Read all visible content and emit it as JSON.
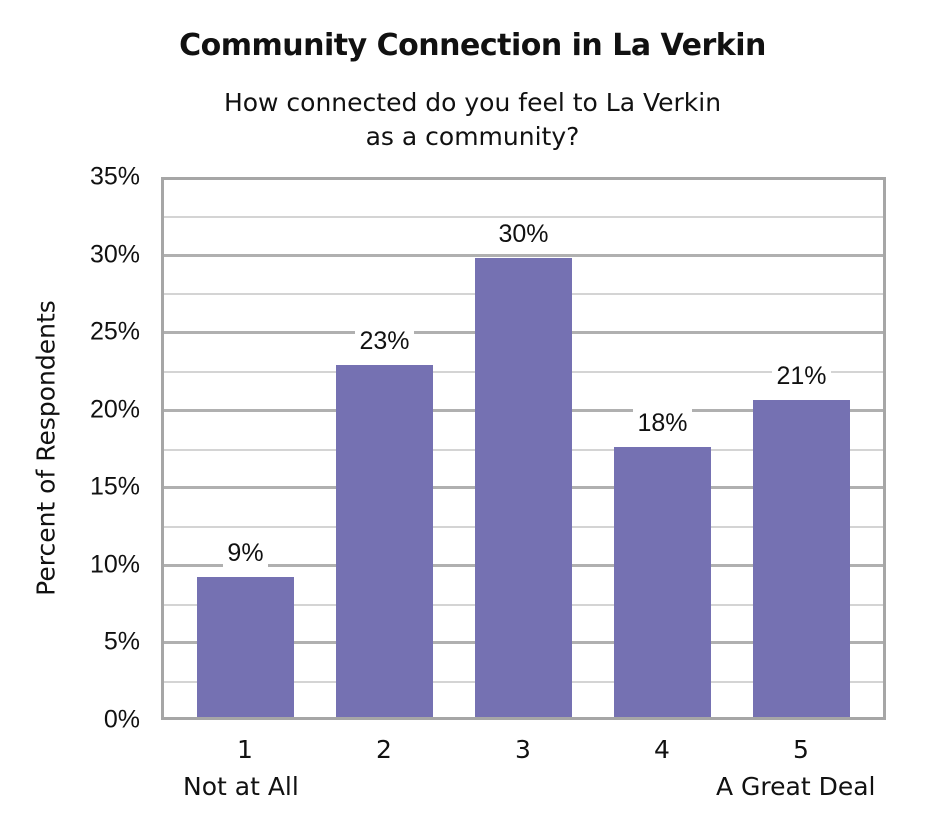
{
  "chart_data": {
    "type": "bar",
    "title": "Community Connection in La Verkin",
    "subtitle": [
      "How connected do you feel to La Verkin",
      "as a community?"
    ],
    "xlabel": "",
    "ylabel": "Percent of Respondents",
    "categories": [
      "1",
      "2",
      "3",
      "4",
      "5"
    ],
    "category_sublabels": {
      "1": "Not at All",
      "5": "A Great Deal"
    },
    "values": [
      9,
      23,
      30,
      18,
      21
    ],
    "bar_values_precise": [
      9.2,
      22.9,
      29.8,
      17.6,
      20.6
    ],
    "data_labels": [
      "9%",
      "23%",
      "30%",
      "18%",
      "21%"
    ],
    "ylim": [
      0,
      35
    ],
    "yticks": [
      "0%",
      "5%",
      "10%",
      "15%",
      "20%",
      "25%",
      "30%",
      "35%"
    ],
    "grid": true,
    "legend": null,
    "bar_color": "#7571b2"
  },
  "labels": {
    "title": "Community Connection in La Verkin",
    "subtitle_line1": "How connected do you feel to La Verkin",
    "subtitle_line2": "as a community?",
    "ylabel": "Percent of Respondents",
    "xsub_left": "Not at All",
    "xsub_right": "A Great Deal"
  }
}
